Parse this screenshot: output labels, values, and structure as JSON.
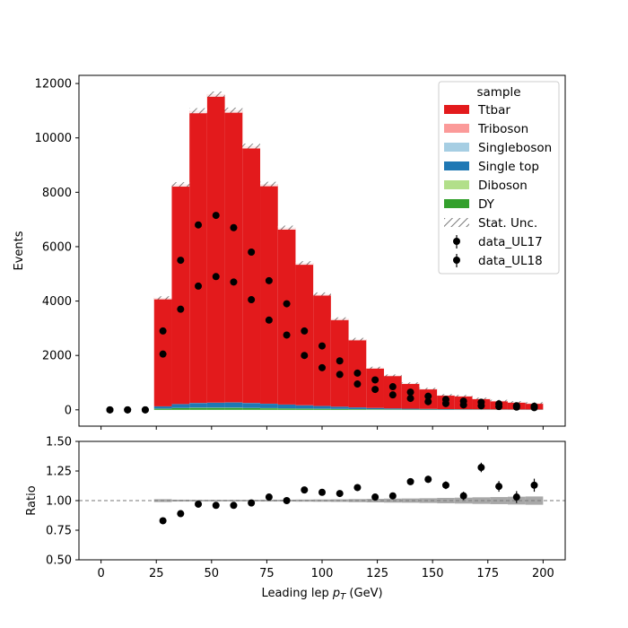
{
  "chart_data": [
    {
      "type": "bar",
      "panel": "main",
      "stacked": true,
      "ylabel": "Events",
      "xlim": [
        -10,
        210
      ],
      "ylim": [
        -600,
        12300
      ],
      "yticks": [
        0,
        2000,
        4000,
        6000,
        8000,
        10000,
        12000
      ],
      "bin_edges": [
        24,
        32,
        40,
        48,
        56,
        64,
        72,
        80,
        88,
        96,
        104,
        112,
        120,
        128,
        136,
        144,
        152,
        160,
        168,
        176,
        184,
        192,
        200
      ],
      "series": [
        {
          "name": "DY",
          "color": "#33a02c",
          "values": [
            40,
            60,
            70,
            70,
            70,
            60,
            55,
            45,
            40,
            35,
            30,
            25,
            20,
            15,
            12,
            10,
            8,
            7,
            6,
            5,
            4,
            4
          ]
        },
        {
          "name": "Diboson",
          "color": "#b2df8a",
          "values": [
            5,
            8,
            10,
            10,
            10,
            9,
            8,
            7,
            6,
            5,
            4,
            3,
            3,
            2,
            2,
            2,
            1,
            1,
            1,
            1,
            1,
            1
          ]
        },
        {
          "name": "Single top",
          "color": "#1f78b4",
          "values": [
            80,
            140,
            170,
            180,
            190,
            180,
            160,
            140,
            120,
            100,
            80,
            60,
            45,
            35,
            28,
            22,
            17,
            14,
            12,
            10,
            8,
            7
          ]
        },
        {
          "name": "Singleboson",
          "color": "#a6cee3",
          "values": [
            3,
            4,
            4,
            4,
            4,
            4,
            3,
            3,
            3,
            2,
            2,
            2,
            2,
            1,
            1,
            1,
            1,
            1,
            1,
            1,
            1,
            1
          ]
        },
        {
          "name": "Triboson",
          "color": "#fb9a99",
          "values": [
            0,
            0,
            0,
            0,
            0,
            0,
            0,
            0,
            0,
            0,
            0,
            0,
            0,
            0,
            0,
            0,
            0,
            0,
            0,
            0,
            0,
            0
          ]
        },
        {
          "name": "Ttbar",
          "color": "#e31a1c",
          "values": [
            3992,
            8078,
            10746,
            11346,
            10746,
            9447,
            8077,
            6505,
            5231,
            4118,
            3234,
            2510,
            1480,
            1217,
            937,
            745,
            523,
            497,
            401,
            323,
            276,
            237
          ]
        }
      ],
      "stat_unc_label": "Stat. Unc.",
      "data": [
        {
          "name": "data_UL17",
          "x": [
            4,
            12,
            20,
            28,
            36,
            44,
            52,
            60,
            68,
            76,
            84,
            92,
            100,
            108,
            116,
            124,
            132,
            140,
            148,
            156,
            164,
            172,
            180,
            188,
            196
          ],
          "y": [
            0,
            0,
            0,
            2900,
            5500,
            6800,
            7150,
            6700,
            5800,
            4750,
            3900,
            2900,
            2350,
            1800,
            1350,
            1100,
            850,
            650,
            500,
            380,
            320,
            280,
            220,
            150,
            130
          ]
        },
        {
          "name": "data_UL18",
          "x": [
            4,
            12,
            20,
            28,
            36,
            44,
            52,
            60,
            68,
            76,
            84,
            92,
            100,
            108,
            116,
            124,
            132,
            140,
            148,
            156,
            164,
            172,
            180,
            188,
            196
          ],
          "y": [
            0,
            0,
            0,
            2050,
            3700,
            4550,
            4900,
            4700,
            4050,
            3300,
            2750,
            2000,
            1550,
            1300,
            950,
            750,
            550,
            420,
            300,
            230,
            180,
            150,
            120,
            100,
            80
          ]
        }
      ],
      "legend": {
        "title": "sample",
        "placement": "top-right"
      }
    },
    {
      "type": "scatter",
      "panel": "ratio",
      "xlabel_prefix": "Leading lep ",
      "xlabel_sym": "p",
      "xlabel_sub": "T",
      "xlabel_unit": " (GeV)",
      "ylabel": "Ratio",
      "xlim": [
        -10,
        210
      ],
      "ylim": [
        0.5,
        1.5
      ],
      "xticks": [
        0,
        25,
        50,
        75,
        100,
        125,
        150,
        175,
        200
      ],
      "yticks": [
        0.5,
        0.75,
        1.0,
        1.25,
        1.5
      ],
      "ytick_labels": [
        "0.50",
        "0.75",
        "1.00",
        "1.25",
        "1.50"
      ],
      "reference_line": 1.0,
      "unc_band": {
        "bin_edges": [
          24,
          32,
          40,
          48,
          56,
          64,
          72,
          80,
          88,
          96,
          104,
          112,
          120,
          128,
          136,
          144,
          152,
          160,
          168,
          176,
          184,
          192,
          200
        ],
        "half_width": [
          0.012,
          0.008,
          0.007,
          0.007,
          0.007,
          0.007,
          0.008,
          0.008,
          0.009,
          0.01,
          0.011,
          0.013,
          0.015,
          0.017,
          0.018,
          0.02,
          0.023,
          0.025,
          0.028,
          0.03,
          0.033,
          0.035
        ]
      },
      "x": [
        28,
        36,
        44,
        52,
        60,
        68,
        76,
        84,
        92,
        100,
        108,
        116,
        124,
        132,
        140,
        148,
        156,
        164,
        172,
        180,
        188,
        196
      ],
      "y": [
        0.83,
        0.89,
        0.97,
        0.96,
        0.96,
        0.98,
        1.03,
        1.0,
        1.09,
        1.07,
        1.06,
        1.11,
        1.03,
        1.04,
        1.16,
        1.18,
        1.13,
        1.04,
        1.28,
        1.12,
        1.03,
        1.13
      ],
      "yerr": [
        0.01,
        0.01,
        0.01,
        0.01,
        0.01,
        0.01,
        0.01,
        0.01,
        0.01,
        0.012,
        0.014,
        0.016,
        0.02,
        0.022,
        0.025,
        0.03,
        0.033,
        0.035,
        0.04,
        0.045,
        0.05,
        0.055
      ]
    }
  ]
}
